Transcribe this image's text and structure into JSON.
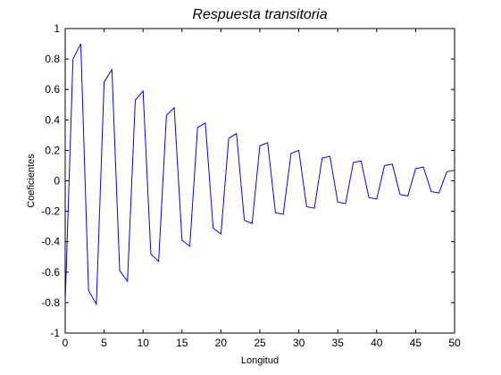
{
  "chart_data": {
    "type": "line",
    "title": "Respuesta transitoria",
    "xlabel": "Longitud",
    "ylabel": "Coeficientes",
    "xlim": [
      0,
      50
    ],
    "ylim": [
      -1,
      1
    ],
    "xticks": [
      0,
      5,
      10,
      15,
      20,
      25,
      30,
      35,
      40,
      45,
      50
    ],
    "yticks": [
      -1,
      -0.8,
      -0.6,
      -0.4,
      -0.2,
      0,
      0.2,
      0.4,
      0.6,
      0.8,
      1
    ],
    "grid": false,
    "colors": {
      "line": "#0000ff",
      "axes": "#000000",
      "background": "#ffffff"
    },
    "series": [
      {
        "x": [
          0,
          1,
          2,
          3,
          4,
          5,
          6,
          7,
          8,
          9,
          10,
          11,
          12,
          13,
          14,
          15,
          16,
          17,
          18,
          19,
          20,
          21,
          22,
          23,
          24,
          25,
          26,
          27,
          28,
          29,
          30,
          31,
          32,
          33,
          34,
          35,
          36,
          37,
          38,
          39,
          40,
          41,
          42,
          43,
          44,
          45,
          46,
          47,
          48,
          49,
          50
        ],
        "values": [
          -0.8,
          0.8,
          0.9,
          -0.72,
          -0.81,
          0.65,
          0.73,
          -0.59,
          -0.66,
          0.53,
          0.59,
          -0.48,
          -0.53,
          0.43,
          0.48,
          -0.39,
          -0.43,
          0.35,
          0.38,
          -0.31,
          -0.35,
          0.28,
          0.31,
          -0.26,
          -0.28,
          0.23,
          0.25,
          -0.21,
          -0.22,
          0.18,
          0.2,
          -0.17,
          -0.18,
          0.15,
          0.16,
          -0.14,
          -0.15,
          0.12,
          0.13,
          -0.11,
          -0.12,
          0.1,
          0.11,
          -0.09,
          -0.1,
          0.08,
          0.09,
          -0.07,
          -0.08,
          0.06,
          0.07
        ]
      }
    ]
  }
}
